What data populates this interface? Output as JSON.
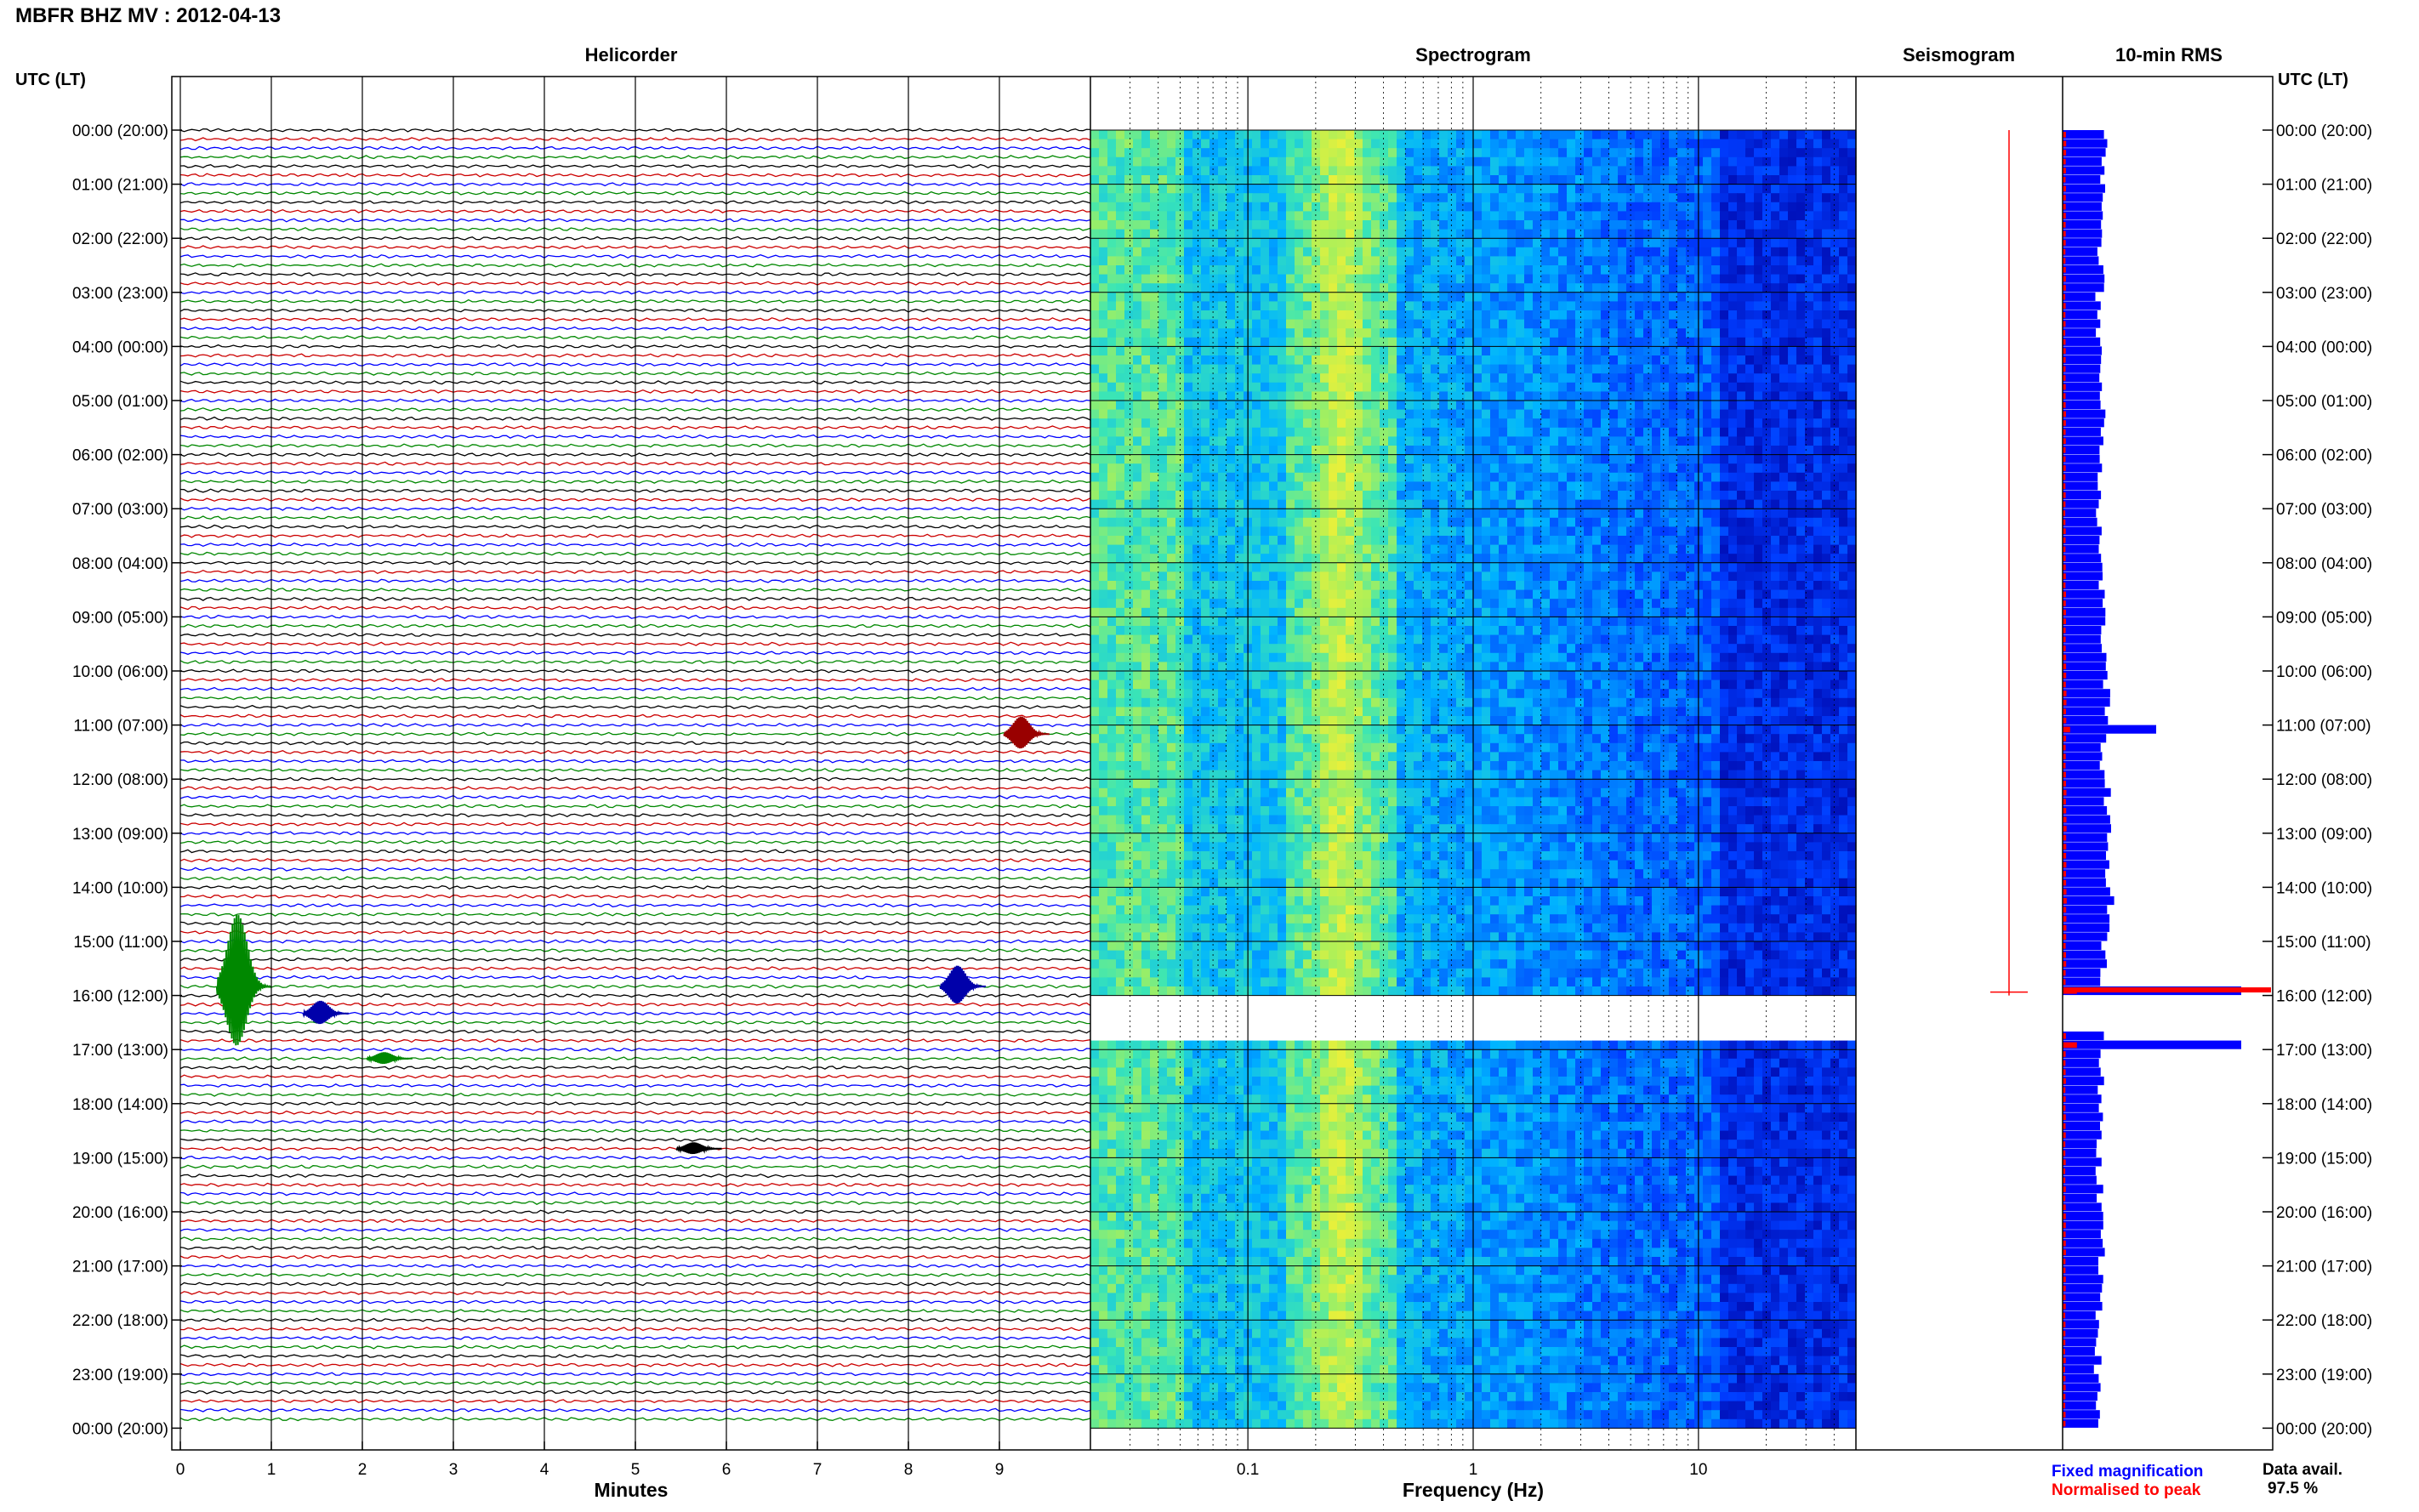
{
  "header": {
    "title": "MBFR BHZ MV : 2012-04-13"
  },
  "panels": {
    "helicorder": "Helicorder",
    "spectrogram": "Spectrogram",
    "seismogram": "Seismogram",
    "rms": "10-min RMS"
  },
  "left_axis_label": "UTC (LT)",
  "right_axis_label": "UTC (LT)",
  "x_labels": {
    "helicorder": "Minutes",
    "spectrogram": "Frequency (Hz)"
  },
  "legend": {
    "fixed": "Fixed magnification",
    "normalised": "Normalised to peak",
    "fixed_color": "#0000ff",
    "normalised_color": "#ff0000"
  },
  "data_availability": {
    "label": "Data avail.",
    "value": "97.5 %"
  },
  "colors": {
    "blue": "#0000ff",
    "red": "#cc0000",
    "green": "#008800",
    "black": "#000000",
    "dark_red": "#990000"
  },
  "chart_data": [
    {
      "type": "line",
      "name": "Helicorder",
      "x_ticks": [
        "0",
        "1",
        "2",
        "3",
        "4",
        "5",
        "6",
        "7",
        "8",
        "9"
      ],
      "xlim": [
        0,
        10
      ],
      "time_labels": [
        "00:00 (20:00)",
        "01:00 (21:00)",
        "02:00 (22:00)",
        "03:00 (23:00)",
        "04:00 (00:00)",
        "05:00 (01:00)",
        "06:00 (02:00)",
        "07:00 (03:00)",
        "08:00 (04:00)",
        "09:00 (05:00)",
        "10:00 (06:00)",
        "11:00 (07:00)",
        "12:00 (08:00)",
        "13:00 (09:00)",
        "14:00 (10:00)",
        "15:00 (11:00)",
        "16:00 (12:00)",
        "17:00 (13:00)",
        "18:00 (14:00)",
        "19:00 (15:00)",
        "20:00 (16:00)",
        "21:00 (17:00)",
        "22:00 (18:00)",
        "23:00 (19:00)",
        "00:00 (20:00)"
      ],
      "traces_per_hour": 6,
      "trace_colors": [
        "#000000",
        "#cc0000",
        "#0000ff",
        "#008800"
      ],
      "events": [
        {
          "hour": 11,
          "trace": 1,
          "minute": 9.3,
          "amp": 22,
          "color": "#990000"
        },
        {
          "hour": 15,
          "trace": 5,
          "minute": 8.6,
          "amp": 26,
          "color": "#0000aa"
        },
        {
          "hour": 16,
          "trace": 2,
          "minute": 1.6,
          "amp": 16,
          "color": "#0000aa"
        },
        {
          "hour": 18,
          "trace": 5,
          "minute": 5.7,
          "amp": 8,
          "color": "#000000"
        },
        {
          "hour": 17,
          "trace": 1,
          "minute": 2.3,
          "amp": 8,
          "color": "#008800"
        },
        {
          "hour": 15,
          "trace": 5,
          "minute": 0.7,
          "amp": 90,
          "color": "#008800"
        }
      ]
    },
    {
      "type": "heatmap",
      "name": "Spectrogram",
      "x_scale": "log",
      "x_ticks": [
        "0.1",
        "1",
        "10"
      ],
      "xlim": [
        0.02,
        50
      ],
      "gap_hours": [
        16.0,
        16.7
      ]
    },
    {
      "type": "bar",
      "name": "10-min RMS",
      "series": [
        {
          "name": "Fixed magnification",
          "color": "#0000ff"
        },
        {
          "name": "Normalised to peak",
          "color": "#ff0000"
        }
      ],
      "notes_values_relative": [
        0.3,
        0.3,
        0.28,
        0.27,
        0.28,
        0.3,
        0.28,
        0.27,
        0.29,
        0.3,
        0.32,
        0.3,
        0.33,
        0.34,
        0.35,
        0.3,
        0.28,
        0.28,
        0.27,
        0.27,
        0.29,
        0.27,
        0.26,
        0.27
      ]
    }
  ]
}
